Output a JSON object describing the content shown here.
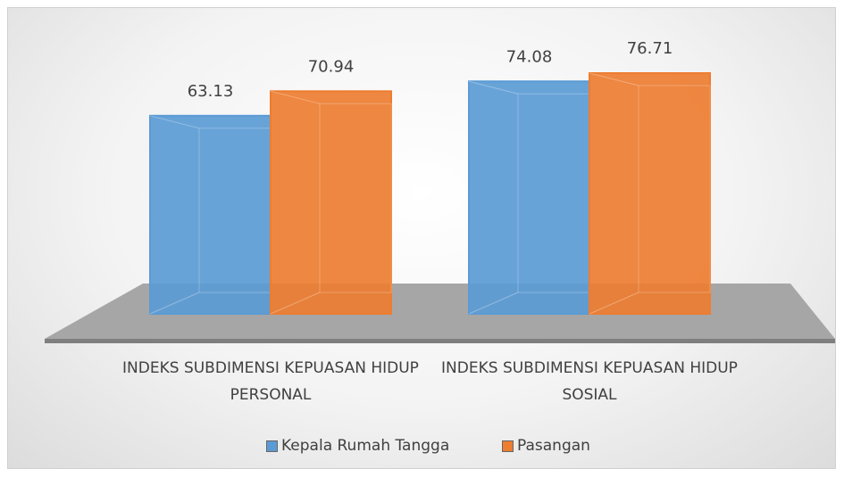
{
  "chart_data": {
    "type": "bar",
    "categories": [
      "INDEKS SUBDIMENSI KEPUASAN HIDUP PERSONAL",
      "INDEKS SUBDIMENSI KEPUASAN HIDUP SOSIAL"
    ],
    "series": [
      {
        "name": "Kepala Rumah Tangga",
        "color": "#5b9bd5",
        "values": [
          63.13,
          74.08
        ]
      },
      {
        "name": "Pasangan",
        "color": "#ed7d31",
        "values": [
          70.94,
          76.71
        ]
      }
    ],
    "legend": "bottom"
  }
}
